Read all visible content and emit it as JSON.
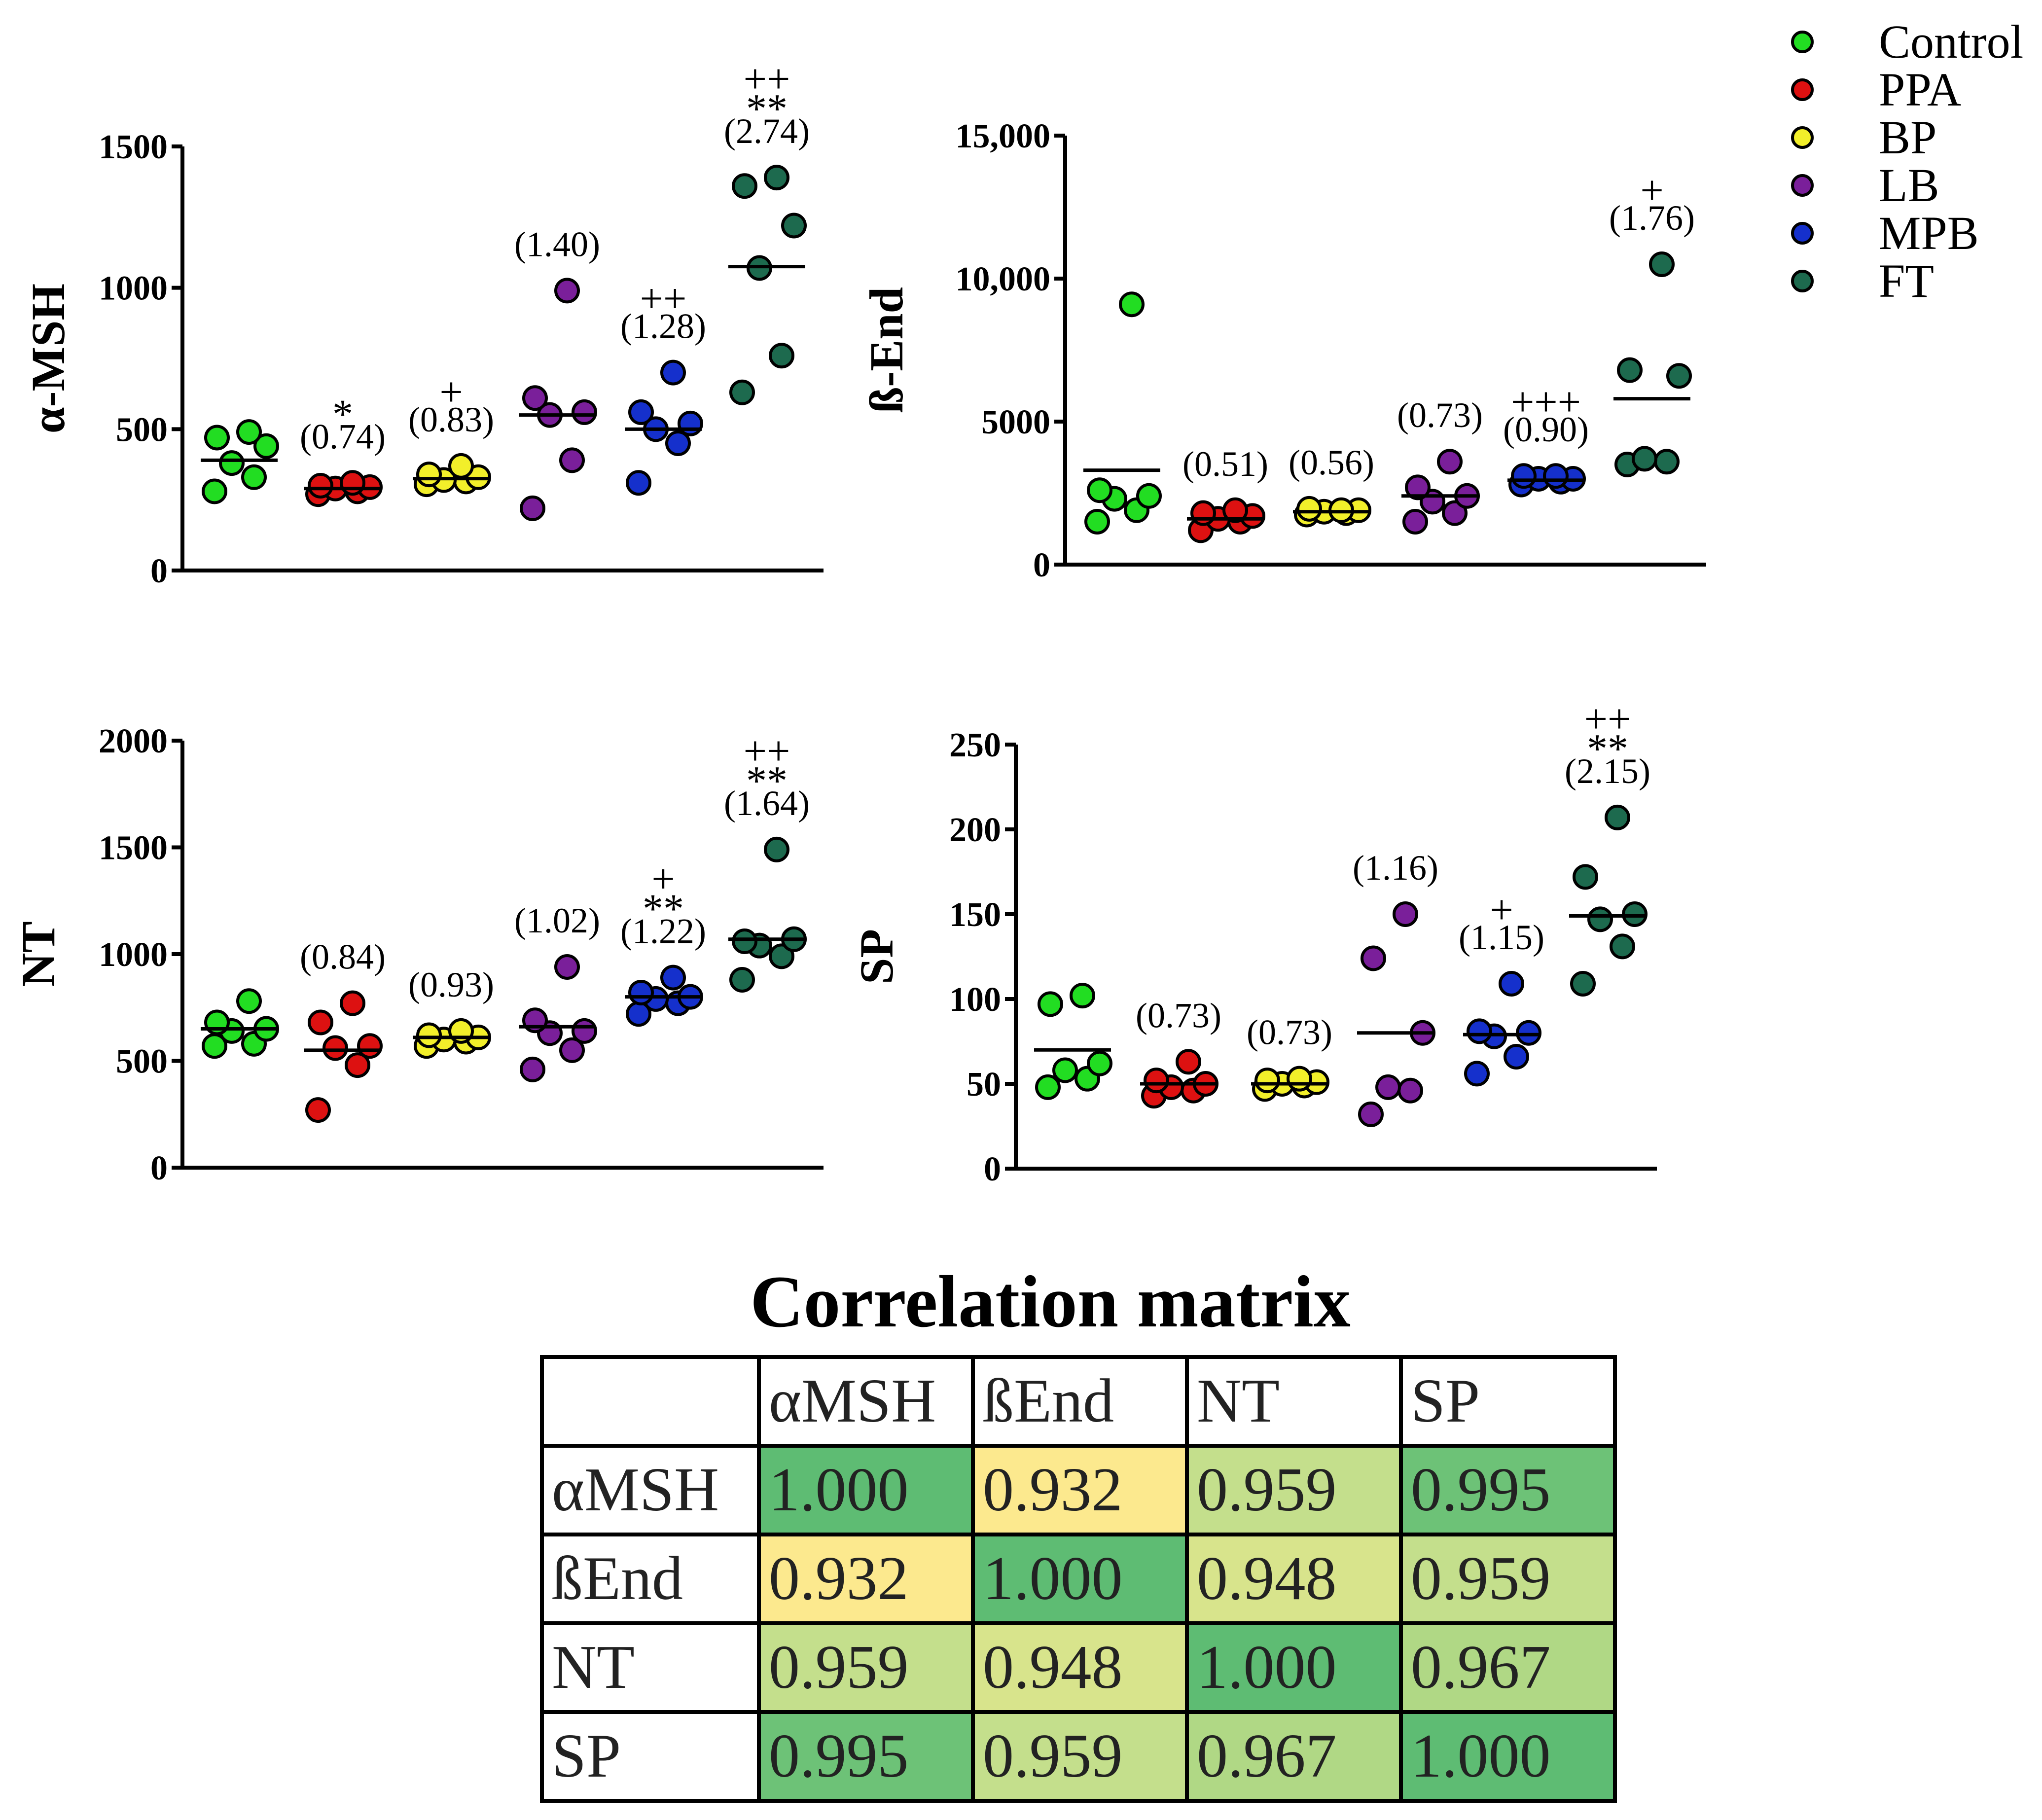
{
  "legend": {
    "items": [
      {
        "label": "Control",
        "color": "#22dd22"
      },
      {
        "label": "PPA",
        "color": "#dd1111"
      },
      {
        "label": "BP",
        "color": "#f2ef2a"
      },
      {
        "label": "LB",
        "color": "#7a1f9a"
      },
      {
        "label": "MPB",
        "color": "#1530cc"
      },
      {
        "label": "FT",
        "color": "#1d6a4e"
      }
    ]
  },
  "chart_data": [
    {
      "type": "scatter",
      "ylabel": "α-MSH",
      "ylim": [
        0,
        1500
      ],
      "yticks": [
        0,
        500,
        1000,
        1500
      ],
      "ytick_labels": [
        "0",
        "500",
        "1000",
        "1500"
      ],
      "categories": [
        "Control",
        "PPA",
        "BP",
        "LB",
        "MPB",
        "FT"
      ],
      "series": [
        {
          "name": "Control",
          "values": [
            280,
            330,
            380,
            440,
            470,
            490
          ],
          "mean": 390,
          "ratio": "",
          "stars": "",
          "plus": ""
        },
        {
          "name": "PPA",
          "values": [
            270,
            280,
            290,
            295,
            300,
            310
          ],
          "mean": 290,
          "ratio": "(0.74)",
          "stars": "*",
          "plus": ""
        },
        {
          "name": "BP",
          "values": [
            305,
            315,
            320,
            330,
            340,
            370
          ],
          "mean": 325,
          "ratio": "(0.83)",
          "stars": "",
          "plus": "+"
        },
        {
          "name": "LB",
          "values": [
            220,
            390,
            550,
            560,
            610,
            990
          ],
          "mean": 550,
          "ratio": "(1.40)",
          "stars": "",
          "plus": ""
        },
        {
          "name": "MPB",
          "values": [
            310,
            450,
            500,
            520,
            560,
            700
          ],
          "mean": 500,
          "ratio": "(1.28)",
          "stars": "",
          "plus": "++"
        },
        {
          "name": "FT",
          "values": [
            630,
            760,
            1070,
            1220,
            1360,
            1390
          ],
          "mean": 1075,
          "ratio": "(2.74)",
          "stars": "**",
          "plus": "++"
        }
      ]
    },
    {
      "type": "scatter",
      "ylabel": "ß-End",
      "ylim": [
        0,
        15000
      ],
      "yticks": [
        0,
        5000,
        10000,
        15000
      ],
      "ytick_labels": [
        "0",
        "5000",
        "10,000",
        "15,000"
      ],
      "categories": [
        "Control",
        "PPA",
        "BP",
        "LB",
        "MPB",
        "FT"
      ],
      "series": [
        {
          "name": "Control",
          "values": [
            1500,
            1900,
            2300,
            2400,
            2600,
            9100
          ],
          "mean": 3300,
          "ratio": "",
          "stars": "",
          "plus": ""
        },
        {
          "name": "PPA",
          "values": [
            1200,
            1500,
            1600,
            1700,
            1800,
            1900
          ],
          "mean": 1600,
          "ratio": "(0.51)",
          "stars": "",
          "plus": ""
        },
        {
          "name": "BP",
          "values": [
            1750,
            1800,
            1850,
            1900,
            1950,
            1900
          ],
          "mean": 1850,
          "ratio": "(0.56)",
          "stars": "",
          "plus": ""
        },
        {
          "name": "LB",
          "values": [
            1500,
            1800,
            2200,
            2400,
            2700,
            3600
          ],
          "mean": 2400,
          "ratio": "(0.73)",
          "stars": "",
          "plus": ""
        },
        {
          "name": "MPB",
          "values": [
            2800,
            2900,
            3000,
            3000,
            3100,
            3100
          ],
          "mean": 2950,
          "ratio": "(0.90)",
          "stars": "",
          "plus": "+++"
        },
        {
          "name": "FT",
          "values": [
            3500,
            3600,
            3700,
            6600,
            6800,
            10500
          ],
          "mean": 5800,
          "ratio": "(1.76)",
          "stars": "",
          "plus": "+"
        }
      ]
    },
    {
      "type": "scatter",
      "ylabel": "NT",
      "ylim": [
        0,
        2000
      ],
      "yticks": [
        0,
        500,
        1000,
        1500,
        2000
      ],
      "ytick_labels": [
        "0",
        "500",
        "1000",
        "1500",
        "2000"
      ],
      "categories": [
        "Control",
        "PPA",
        "BP",
        "LB",
        "MPB",
        "FT"
      ],
      "series": [
        {
          "name": "Control",
          "values": [
            570,
            580,
            640,
            650,
            680,
            780
          ],
          "mean": 650,
          "ratio": "",
          "stars": "",
          "plus": ""
        },
        {
          "name": "PPA",
          "values": [
            270,
            480,
            560,
            570,
            680,
            770
          ],
          "mean": 550,
          "ratio": "(0.84)",
          "stars": "",
          "plus": ""
        },
        {
          "name": "BP",
          "values": [
            570,
            590,
            600,
            610,
            620,
            640
          ],
          "mean": 610,
          "ratio": "(0.93)",
          "stars": "",
          "plus": ""
        },
        {
          "name": "LB",
          "values": [
            460,
            550,
            630,
            640,
            690,
            940
          ],
          "mean": 660,
          "ratio": "(1.02)",
          "stars": "",
          "plus": ""
        },
        {
          "name": "MPB",
          "values": [
            720,
            770,
            790,
            800,
            820,
            890
          ],
          "mean": 800,
          "ratio": "(1.22)",
          "stars": "**",
          "plus": "+"
        },
        {
          "name": "FT",
          "values": [
            880,
            990,
            1040,
            1070,
            1060,
            1490
          ],
          "mean": 1070,
          "ratio": "(1.64)",
          "stars": "**",
          "plus": "++"
        }
      ]
    },
    {
      "type": "scatter",
      "ylabel": "SP",
      "ylim": [
        0,
        250
      ],
      "yticks": [
        0,
        50,
        100,
        150,
        200,
        250
      ],
      "ytick_labels": [
        "0",
        "50",
        "100",
        "150",
        "200",
        "250"
      ],
      "categories": [
        "Control",
        "PPA",
        "BP",
        "LB",
        "MPB",
        "FT"
      ],
      "series": [
        {
          "name": "Control",
          "values": [
            48,
            53,
            58,
            62,
            97,
            102
          ],
          "mean": 70,
          "ratio": "",
          "stars": "",
          "plus": ""
        },
        {
          "name": "PPA",
          "values": [
            43,
            46,
            48,
            50,
            52,
            63
          ],
          "mean": 50,
          "ratio": "(0.73)",
          "stars": "",
          "plus": ""
        },
        {
          "name": "BP",
          "values": [
            47,
            49,
            50,
            51,
            52,
            53
          ],
          "mean": 50,
          "ratio": "(0.73)",
          "stars": "",
          "plus": ""
        },
        {
          "name": "LB",
          "values": [
            32,
            46,
            48,
            80,
            124,
            150
          ],
          "mean": 80,
          "ratio": "(1.16)",
          "stars": "",
          "plus": ""
        },
        {
          "name": "MPB",
          "values": [
            56,
            66,
            78,
            80,
            81,
            109
          ],
          "mean": 79,
          "ratio": "(1.15)",
          "stars": "",
          "plus": "+"
        },
        {
          "name": "FT",
          "values": [
            109,
            131,
            147,
            150,
            172,
            207
          ],
          "mean": 149,
          "ratio": "(2.15)",
          "stars": "**",
          "plus": "++"
        }
      ]
    }
  ],
  "correlation": {
    "title": "Correlation matrix",
    "headers": [
      "αMSH",
      "ßEnd",
      "NT",
      "SP"
    ],
    "rows": [
      {
        "label": "αMSH",
        "cells": [
          "1.000",
          "0.932",
          "0.959",
          "0.995"
        ],
        "colors": [
          "#5ebc73",
          "#fce98e",
          "#c4df8c",
          "#6dc277"
        ]
      },
      {
        "label": "ßEnd",
        "cells": [
          "0.932",
          "1.000",
          "0.948",
          "0.959"
        ],
        "colors": [
          "#fce98e",
          "#5ebc73",
          "#d8e48c",
          "#c4df8c"
        ]
      },
      {
        "label": "NT",
        "cells": [
          "0.959",
          "0.948",
          "1.000",
          "0.967"
        ],
        "colors": [
          "#c4df8c",
          "#d8e48c",
          "#5ebc73",
          "#b0d885"
        ]
      },
      {
        "label": "SP",
        "cells": [
          "0.995",
          "0.959",
          "0.967",
          "1.000"
        ],
        "colors": [
          "#6dc277",
          "#c4df8c",
          "#b0d885",
          "#5ebc73"
        ]
      }
    ]
  }
}
